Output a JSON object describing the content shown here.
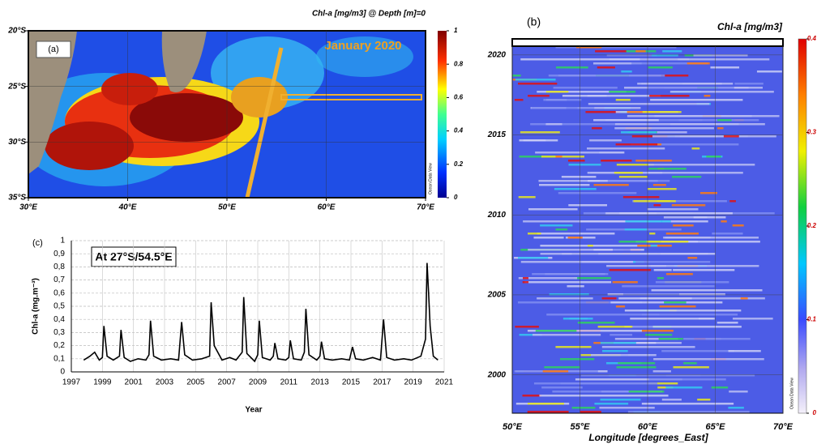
{
  "chart_data": [
    {
      "type": "map",
      "panel_label": "(a)",
      "title": "Chl-a [mg/m3] @ Depth [m]=0",
      "annotation": "January 2020",
      "watermark": "Ocean Data View",
      "xlim": [
        30,
        70
      ],
      "xticks": [
        {
          "value": 30,
          "label": "30°E"
        },
        {
          "value": 40,
          "label": "40°E"
        },
        {
          "value": 50,
          "label": "50°E"
        },
        {
          "value": 60,
          "label": "60°E"
        },
        {
          "value": 70,
          "label": "70°E"
        }
      ],
      "ylim": [
        -35,
        -20
      ],
      "yticks": [
        {
          "value": -20,
          "label": "20°S"
        },
        {
          "value": -25,
          "label": "25°S"
        },
        {
          "value": -30,
          "label": "30°S"
        },
        {
          "value": -35,
          "label": "35°S"
        }
      ],
      "colorbar": {
        "lim": [
          0,
          1
        ],
        "ticks": [
          0,
          0.2,
          0.4,
          0.6,
          0.8,
          1
        ]
      }
    },
    {
      "type": "line",
      "panel_label": "(c)",
      "annotation": "At 27°S/54.5°E",
      "x_label": "Year",
      "y_label": "Chl-a (mg.m⁻³)",
      "xlim": [
        1997,
        2021
      ],
      "xticks": [
        1997,
        1999,
        2001,
        2003,
        2005,
        2007,
        2009,
        2011,
        2013,
        2015,
        2017,
        2019,
        2021
      ],
      "ylim": [
        0,
        1
      ],
      "yticks": [
        0,
        {
          "value": 0.1,
          "label": "0,1"
        },
        {
          "value": 0.2,
          "label": "0,2"
        },
        {
          "value": 0.3,
          "label": "0,3"
        },
        {
          "value": 0.4,
          "label": "0,4"
        },
        {
          "value": 0.5,
          "label": "0,5"
        },
        {
          "value": 0.6,
          "label": "0,6"
        },
        {
          "value": 0.7,
          "label": "0,7"
        },
        {
          "value": 0.8,
          "label": "0,8"
        },
        {
          "value": 0.9,
          "label": "0,9"
        },
        1
      ],
      "grid": true,
      "color": "#000000",
      "x": [
        1997.8,
        1998.2,
        1998.5,
        1998.8,
        1999.0,
        1999.1,
        1999.3,
        1999.7,
        2000.1,
        2000.2,
        2000.4,
        2000.8,
        2001.3,
        2001.8,
        2002.0,
        2002.1,
        2002.3,
        2002.8,
        2003.4,
        2003.9,
        2004.1,
        2004.3,
        2004.8,
        2005.4,
        2005.9,
        2006.0,
        2006.2,
        2006.7,
        2007.2,
        2007.6,
        2008.0,
        2008.1,
        2008.3,
        2008.8,
        2009.0,
        2009.1,
        2009.3,
        2009.8,
        2010.0,
        2010.1,
        2010.3,
        2010.8,
        2011.0,
        2011.1,
        2011.3,
        2011.8,
        2012.0,
        2012.1,
        2012.3,
        2012.8,
        2013.0,
        2013.1,
        2013.3,
        2013.8,
        2014.4,
        2014.9,
        2015.1,
        2015.3,
        2015.8,
        2016.4,
        2016.9,
        2017.1,
        2017.3,
        2017.8,
        2018.4,
        2018.9,
        2019.5,
        2019.8,
        2019.9,
        2020.0,
        2020.1,
        2020.3,
        2020.6
      ],
      "values": [
        0.09,
        0.12,
        0.15,
        0.09,
        0.11,
        0.35,
        0.12,
        0.09,
        0.12,
        0.32,
        0.11,
        0.08,
        0.1,
        0.09,
        0.13,
        0.39,
        0.12,
        0.09,
        0.1,
        0.09,
        0.38,
        0.13,
        0.09,
        0.1,
        0.12,
        0.53,
        0.2,
        0.09,
        0.11,
        0.09,
        0.15,
        0.57,
        0.14,
        0.08,
        0.13,
        0.39,
        0.11,
        0.09,
        0.12,
        0.22,
        0.1,
        0.09,
        0.11,
        0.24,
        0.1,
        0.09,
        0.15,
        0.48,
        0.13,
        0.09,
        0.12,
        0.23,
        0.1,
        0.09,
        0.1,
        0.09,
        0.19,
        0.1,
        0.09,
        0.11,
        0.09,
        0.4,
        0.11,
        0.09,
        0.1,
        0.09,
        0.12,
        0.25,
        0.83,
        0.6,
        0.35,
        0.12,
        0.09
      ]
    },
    {
      "type": "heatmap",
      "panel_label": "(b)",
      "title": "Chl-a [mg/m3]",
      "watermark": "Ocean Data View",
      "x_label": "Longitude [degrees_East]",
      "xlim": [
        50,
        70
      ],
      "xticks": [
        {
          "value": 50,
          "label": "50°E"
        },
        {
          "value": 55,
          "label": "55°E"
        },
        {
          "value": 60,
          "label": "60°E"
        },
        {
          "value": 65,
          "label": "65°E"
        },
        {
          "value": 70,
          "label": "70°E"
        }
      ],
      "ylim": [
        1997.6,
        2020.55
      ],
      "yticks": [
        2000,
        2005,
        2010,
        2015,
        2020
      ],
      "colorbar": {
        "lim": [
          0,
          0.4
        ],
        "ticks": [
          0,
          0.1,
          0.2,
          0.3,
          0.4
        ]
      }
    }
  ]
}
